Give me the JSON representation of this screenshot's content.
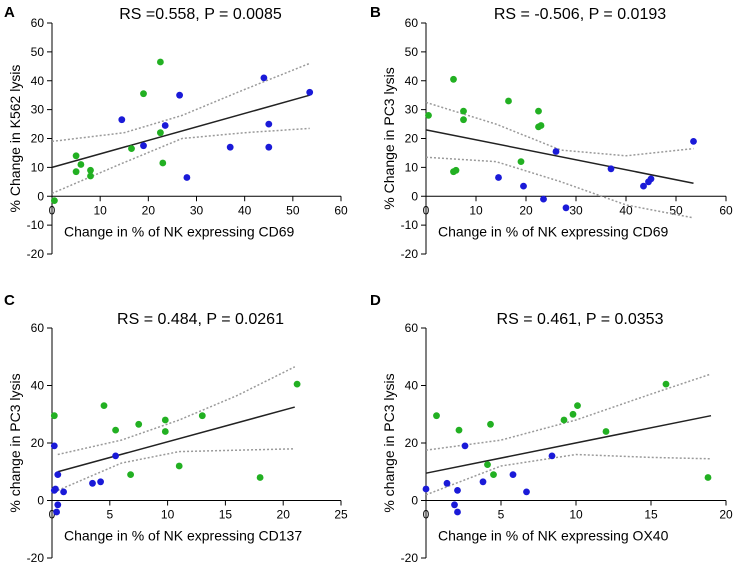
{
  "chart_data": [
    {
      "type": "scatter",
      "letter": "A",
      "stat": "RS =0.558,  P = 0.0085",
      "xlabel": "Change in % of NK expressing CD69",
      "ylabel": "% Change in K562 lysis",
      "xlim": [
        0,
        60
      ],
      "ylim": [
        -20,
        60
      ],
      "xticks": [
        0,
        10,
        20,
        30,
        40,
        50,
        60
      ],
      "yticks": [
        -20,
        -10,
        0,
        10,
        20,
        30,
        40,
        50,
        60
      ],
      "fit": [
        [
          0,
          10
        ],
        [
          53.5,
          35
        ]
      ],
      "ci_upper": [
        [
          0,
          19
        ],
        [
          15,
          22
        ],
        [
          27,
          28
        ],
        [
          40,
          37
        ],
        [
          53.5,
          46
        ]
      ],
      "ci_lower": [
        [
          0,
          1
        ],
        [
          14,
          11
        ],
        [
          27,
          20
        ],
        [
          40,
          22
        ],
        [
          53.5,
          23.5
        ]
      ],
      "series": [
        {
          "name": "green",
          "color": "#22b022",
          "points": [
            [
              0.5,
              -1.5
            ],
            [
              5,
              14
            ],
            [
              6,
              11
            ],
            [
              5,
              8.5
            ],
            [
              8,
              9
            ],
            [
              8,
              7
            ],
            [
              16.5,
              16.5
            ],
            [
              19,
              35.5
            ],
            [
              22.5,
              22
            ],
            [
              22.5,
              46.5
            ],
            [
              23,
              11.5
            ]
          ]
        },
        {
          "name": "blue",
          "color": "#1a1ad8",
          "points": [
            [
              14.5,
              26.5
            ],
            [
              19,
              17.5
            ],
            [
              23.5,
              24.5
            ],
            [
              26.5,
              35
            ],
            [
              28,
              6.5
            ],
            [
              37,
              17
            ],
            [
              44,
              41
            ],
            [
              45,
              25
            ],
            [
              45,
              17
            ],
            [
              53.5,
              36
            ]
          ]
        }
      ]
    },
    {
      "type": "scatter",
      "letter": "B",
      "stat": "RS = -0.506,  P = 0.0193",
      "xlabel": "Change in % of NK expressing CD69",
      "ylabel": "% Change in PC3 lysis",
      "xlim": [
        0,
        60
      ],
      "ylim": [
        -20,
        60
      ],
      "xticks": [
        0,
        10,
        20,
        30,
        40,
        50,
        60
      ],
      "yticks": [
        -20,
        -10,
        0,
        10,
        20,
        30,
        40,
        50,
        60
      ],
      "fit": [
        [
          0,
          23
        ],
        [
          53.5,
          4.5
        ]
      ],
      "ci_upper": [
        [
          0,
          32.5
        ],
        [
          14,
          25
        ],
        [
          27,
          16
        ],
        [
          40,
          14
        ],
        [
          53.5,
          16.5
        ]
      ],
      "ci_lower": [
        [
          0,
          13.5
        ],
        [
          14,
          12
        ],
        [
          27,
          5
        ],
        [
          40,
          -3
        ],
        [
          53.5,
          -7.5
        ]
      ],
      "series": [
        {
          "name": "green",
          "color": "#22b022",
          "points": [
            [
              0.5,
              28
            ],
            [
              5.5,
              40.5
            ],
            [
              5.5,
              8.5
            ],
            [
              6,
              9
            ],
            [
              7.5,
              29.5
            ],
            [
              7.5,
              26.5
            ],
            [
              16.5,
              33
            ],
            [
              19,
              12
            ],
            [
              22.5,
              29.5
            ],
            [
              22.5,
              24
            ],
            [
              23,
              24.5
            ]
          ]
        },
        {
          "name": "blue",
          "color": "#1a1ad8",
          "points": [
            [
              14.5,
              6.5
            ],
            [
              19.5,
              3.5
            ],
            [
              23.5,
              -1
            ],
            [
              26,
              15.5
            ],
            [
              28,
              -4
            ],
            [
              37,
              9.5
            ],
            [
              43.5,
              3.5
            ],
            [
              44.5,
              5
            ],
            [
              45,
              6
            ],
            [
              53.5,
              19
            ]
          ]
        }
      ]
    },
    {
      "type": "scatter",
      "letter": "C",
      "stat": "RS = 0.484,  P = 0.0261",
      "xlabel": "Change in % of NK expressing CD137",
      "ylabel": "% change in PC3 lysis",
      "xlim": [
        0,
        25
      ],
      "ylim": [
        -20,
        60
      ],
      "xticks": [
        0,
        5,
        10,
        15,
        20,
        25
      ],
      "yticks": [
        -20,
        0,
        20,
        40,
        60
      ],
      "fit": [
        [
          0.5,
          10
        ],
        [
          21,
          32.5
        ]
      ],
      "ci_upper": [
        [
          0.5,
          16
        ],
        [
          6,
          21
        ],
        [
          11,
          28
        ],
        [
          16,
          36.5
        ],
        [
          21,
          46.5
        ]
      ],
      "ci_lower": [
        [
          0.5,
          3.5
        ],
        [
          6,
          13
        ],
        [
          11,
          17
        ],
        [
          16,
          17.5
        ],
        [
          21,
          18
        ]
      ],
      "series": [
        {
          "name": "green",
          "color": "#22b022",
          "points": [
            [
              0.2,
              29.5
            ],
            [
              4.5,
              33
            ],
            [
              5.5,
              24.5
            ],
            [
              6.8,
              9
            ],
            [
              7.5,
              26.5
            ],
            [
              9.8,
              28
            ],
            [
              9.8,
              24
            ],
            [
              11,
              12
            ],
            [
              13,
              29.5
            ],
            [
              18,
              8
            ],
            [
              21.2,
              40.5
            ]
          ]
        },
        {
          "name": "blue",
          "color": "#1a1ad8",
          "points": [
            [
              0.2,
              19
            ],
            [
              0.2,
              3.5
            ],
            [
              0.3,
              4
            ],
            [
              0.5,
              9
            ],
            [
              0.5,
              -1.5
            ],
            [
              0.4,
              -4
            ],
            [
              1,
              3
            ],
            [
              3.5,
              6
            ],
            [
              4.2,
              6.5
            ],
            [
              5.5,
              15.5
            ]
          ]
        }
      ]
    },
    {
      "type": "scatter",
      "letter": "D",
      "stat": "RS = 0.461,  P = 0.0353",
      "xlabel": "Change in % of NK expressing OX40",
      "ylabel": "% change in PC3 lysis",
      "xlim": [
        0,
        20
      ],
      "ylim": [
        -20,
        60
      ],
      "xticks": [
        0,
        5,
        10,
        15,
        20
      ],
      "yticks": [
        -20,
        0,
        20,
        40,
        60
      ],
      "fit": [
        [
          0,
          9.5
        ],
        [
          19,
          29.5
        ]
      ],
      "ci_upper": [
        [
          0,
          17.5
        ],
        [
          5,
          21
        ],
        [
          10,
          28
        ],
        [
          15,
          37
        ],
        [
          19,
          44
        ]
      ],
      "ci_lower": [
        [
          0,
          2
        ],
        [
          5,
          12
        ],
        [
          10,
          16
        ],
        [
          15,
          15
        ],
        [
          19,
          14.5
        ]
      ],
      "series": [
        {
          "name": "green",
          "color": "#22b022",
          "points": [
            [
              0.7,
              29.5
            ],
            [
              2.2,
              24.5
            ],
            [
              4.1,
              12.5
            ],
            [
              4.3,
              26.5
            ],
            [
              4.5,
              9
            ],
            [
              9.2,
              28
            ],
            [
              9.8,
              30
            ],
            [
              10.1,
              33
            ],
            [
              12,
              24
            ],
            [
              16,
              40.5
            ],
            [
              18.8,
              8
            ]
          ]
        },
        {
          "name": "blue",
          "color": "#1a1ad8",
          "points": [
            [
              0,
              4
            ],
            [
              1.4,
              6
            ],
            [
              1.9,
              -1.5
            ],
            [
              2.1,
              3.5
            ],
            [
              2.1,
              -4
            ],
            [
              2.6,
              19
            ],
            [
              3.8,
              6.5
            ],
            [
              5.8,
              9
            ],
            [
              6.7,
              3
            ],
            [
              8.4,
              15.5
            ]
          ]
        }
      ]
    }
  ]
}
